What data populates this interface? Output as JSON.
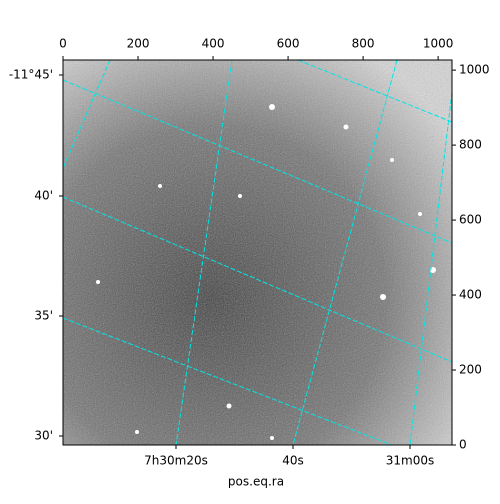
{
  "chart_data": {
    "type": "image",
    "xlabel": "pos.eq.ra",
    "xlim": [
      0,
      1037
    ],
    "xticks": [
      0,
      200,
      400,
      600,
      800,
      1000
    ],
    "ylim": [
      0,
      1027
    ],
    "yticks": [
      0,
      200,
      400,
      600,
      800,
      1000
    ],
    "dec_labels": [
      "-11°45'",
      "40'",
      "35'",
      "30'"
    ],
    "ra_labels": [
      "7h30m20s",
      "40s",
      "31m00s"
    ],
    "grid_color": "#00e5e5"
  }
}
